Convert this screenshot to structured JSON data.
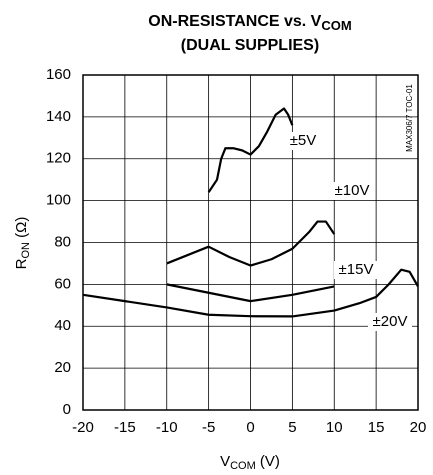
{
  "chart_data": {
    "type": "line",
    "title": [
      "ON-RESISTANCE vs. V",
      "COM"
    ],
    "subtitle": "(DUAL SUPPLIES)",
    "y_label": [
      "R",
      "ON",
      " (Ω)"
    ],
    "x_label": [
      "V",
      "COM",
      " (V)"
    ],
    "note": "MAX306/7 TOC-01",
    "xlim": [
      -20,
      20
    ],
    "xticks": [
      -20,
      -15,
      -10,
      -5,
      0,
      5,
      10,
      15,
      20
    ],
    "ylim": [
      0,
      160
    ],
    "yticks": [
      0,
      20,
      40,
      60,
      80,
      100,
      120,
      140,
      160
    ],
    "grid": true,
    "series": [
      {
        "name": "±5V",
        "color": "#000000",
        "x": [
          -5,
          -4,
          -3.5,
          -3,
          -2,
          -1,
          0,
          1,
          2,
          3,
          4,
          4.5,
          5
        ],
        "values": [
          104,
          110,
          120,
          125,
          125,
          124,
          122,
          126,
          133,
          141,
          144,
          141,
          136
        ]
      },
      {
        "name": "±10V",
        "color": "#000000",
        "x": [
          -10,
          -7.5,
          -5,
          -2.5,
          0,
          2.5,
          5,
          7,
          8,
          9,
          10
        ],
        "values": [
          70,
          74,
          78,
          73,
          69,
          72,
          77,
          85,
          90,
          90,
          84
        ]
      },
      {
        "name": "±15V",
        "color": "#000000",
        "x": [
          -10,
          -5,
          0,
          5,
          10
        ],
        "values": [
          60,
          56,
          52,
          55,
          59
        ]
      },
      {
        "name": "±20V",
        "color": "#000000",
        "x": [
          -20,
          -15,
          -10,
          -5,
          0,
          5,
          10,
          13,
          15,
          16.5,
          18,
          19,
          20
        ],
        "values": [
          55,
          52,
          49,
          45.5,
          44.8,
          44.7,
          47.5,
          51,
          54,
          60,
          67,
          66,
          59
        ]
      }
    ]
  }
}
